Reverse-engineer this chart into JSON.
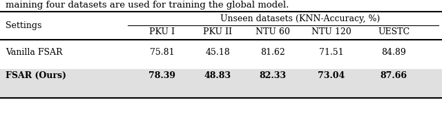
{
  "caption": "maining four datasets are used for training the global model.",
  "header_main": "Unseen datasets (KNN-Accuracy, %)",
  "header_col0": "Settings",
  "col_headers": [
    "PKU I",
    "PKU II",
    "NTU 60",
    "NTU 120",
    "UESTC"
  ],
  "rows": [
    {
      "label": "Vanilla FSAR",
      "values": [
        "75.81",
        "45.18",
        "81.62",
        "71.51",
        "84.89"
      ],
      "bold": false
    },
    {
      "label": "FSAR (Ours)",
      "values": [
        "78.39",
        "48.83",
        "82.33",
        "73.04",
        "87.66"
      ],
      "bold": true
    }
  ],
  "bg_color": "#ffffff",
  "shade_color": "#e0e0e0",
  "text_color": "#000000",
  "font_size": 9.0,
  "caption_font_size": 9.5
}
